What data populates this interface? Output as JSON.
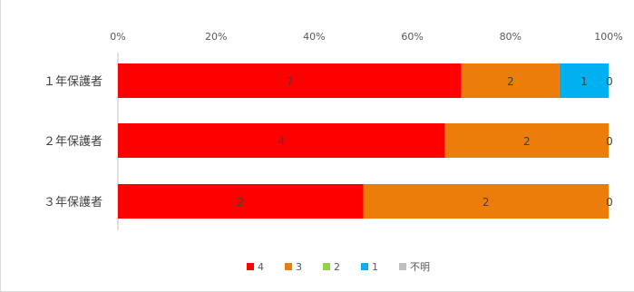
{
  "chart_data": {
    "type": "bar",
    "orientation": "horizontal",
    "stacked": "percent",
    "categories": [
      "１年保護者",
      "２年保護者",
      "３年保護者"
    ],
    "series": [
      {
        "name": "4",
        "color": "#ff0000",
        "values": [
          7,
          4,
          2
        ],
        "labels": [
          "7",
          "4",
          "2"
        ]
      },
      {
        "name": "3",
        "color": "#ed7d0b",
        "values": [
          2,
          2,
          2
        ],
        "labels": [
          "2",
          "2",
          "2"
        ]
      },
      {
        "name": "2",
        "color": "#92d050",
        "values": [
          0,
          0,
          0
        ],
        "labels": [
          "",
          "",
          ""
        ]
      },
      {
        "name": "1",
        "color": "#00b0f0",
        "values": [
          1,
          0,
          0
        ],
        "labels": [
          "1",
          "0",
          "0"
        ]
      },
      {
        "name": "不明",
        "color": "#bfbfbf",
        "values": [
          0,
          0,
          0
        ],
        "labels": [
          "0",
          "",
          ""
        ]
      }
    ],
    "xtick_labels": [
      "0%",
      "20%",
      "40%",
      "60%",
      "80%",
      "100%"
    ],
    "xlim": [
      0,
      100
    ],
    "grid": false,
    "legend": "bottom"
  }
}
